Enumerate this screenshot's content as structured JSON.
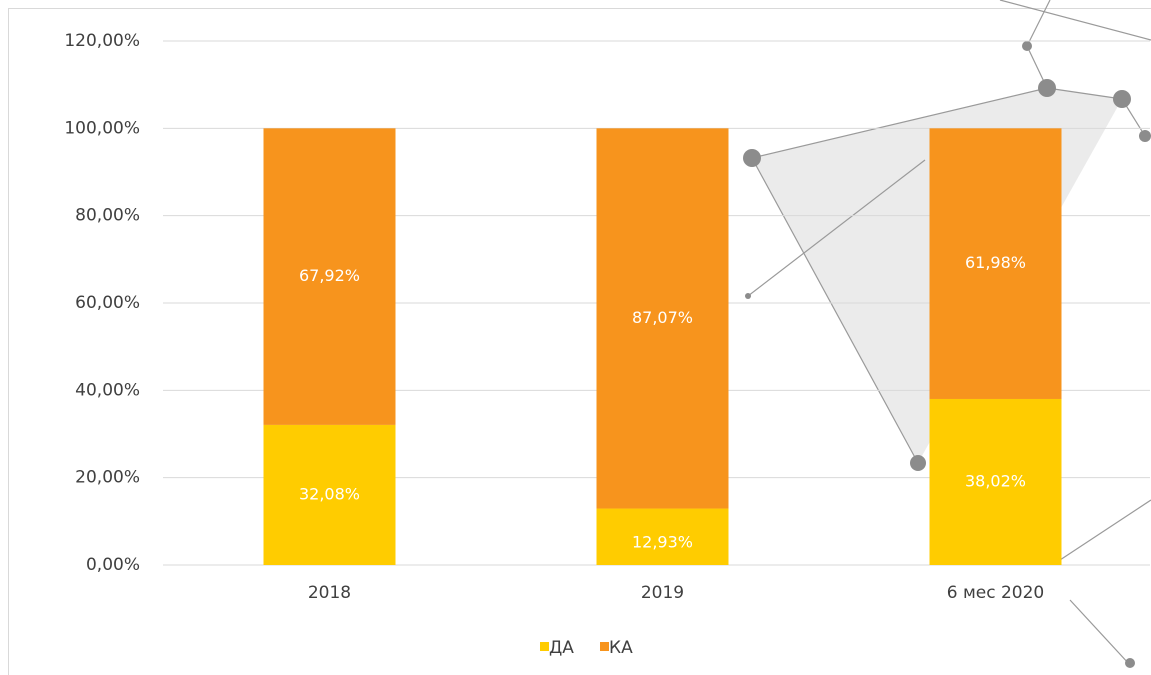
{
  "chart_data": {
    "type": "stacked_bar",
    "categories": [
      "2018",
      "2019",
      "6 мес 2020"
    ],
    "series": [
      {
        "name": "ДА",
        "color": "#ffcc00",
        "values": [
          32.08,
          12.93,
          38.02
        ],
        "value_labels": [
          "32,08%",
          "12,93%",
          "38,02%"
        ]
      },
      {
        "name": "КА",
        "color": "#f7941d",
        "values": [
          67.92,
          87.07,
          61.98
        ],
        "value_labels": [
          "67,92%",
          "87,07%",
          "61,98%"
        ]
      }
    ],
    "ylim": [
      0,
      120
    ],
    "yticks": [
      {
        "value": 0,
        "label": "0,00%"
      },
      {
        "value": 20,
        "label": "20,00%"
      },
      {
        "value": 40,
        "label": "40,00%"
      },
      {
        "value": 60,
        "label": "60,00%"
      },
      {
        "value": 80,
        "label": "80,00%"
      },
      {
        "value": 100,
        "label": "100,00%"
      },
      {
        "value": 120,
        "label": "120,00%"
      }
    ],
    "grid": true,
    "legend": "bottom"
  }
}
